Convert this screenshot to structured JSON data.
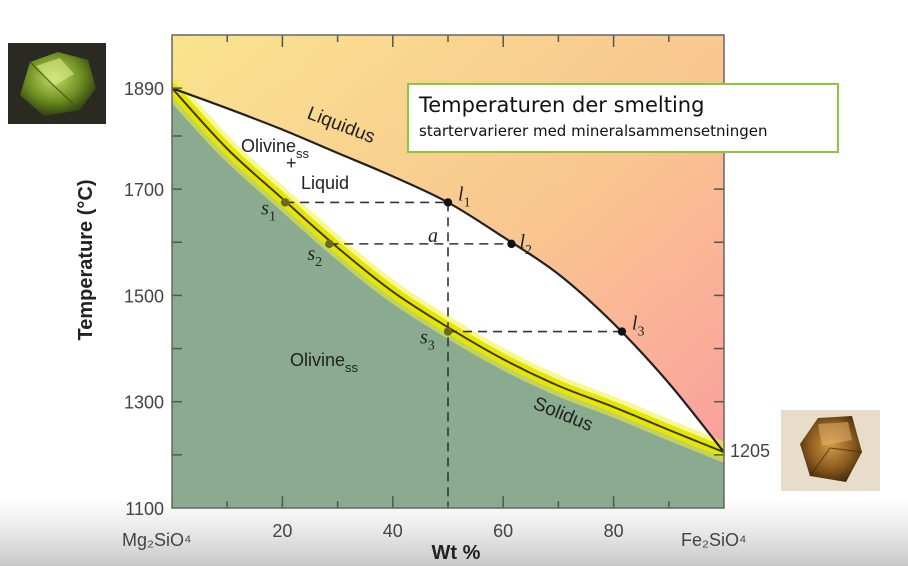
{
  "callout": {
    "title": "Temperaturen der smelting",
    "subtitle": "startervarierer med mineralsammensetningen"
  },
  "chart_data": {
    "type": "line",
    "title": "",
    "xlabel": "Wt %",
    "ylabel": "Temperature (°C)",
    "xlim": [
      0,
      100
    ],
    "ylim": [
      1100,
      1990
    ],
    "x_ticks": [
      "20",
      "40",
      "60",
      "80"
    ],
    "y_ticks": [
      "1890",
      "1700",
      "1500",
      "1300",
      "1100"
    ],
    "x_end_labels": {
      "left": "Mg₂SiO₄",
      "right": "Fe₂SiO₄"
    },
    "endpoint_labels": {
      "left": "",
      "right": "1205"
    },
    "region_labels": {
      "liquid_region": "",
      "two_phase": [
        "Olivine",
        "ss",
        "+",
        "Liquid"
      ],
      "solid": [
        "Olivine",
        "ss"
      ]
    },
    "series": [
      {
        "name": "Liquidus",
        "x": [
          0,
          10,
          20,
          30,
          40,
          50,
          60,
          70,
          80,
          90,
          100
        ],
        "y": [
          1890,
          1852,
          1812,
          1768,
          1724,
          1675,
          1610,
          1540,
          1447,
          1335,
          1205
        ]
      },
      {
        "name": "Solidus",
        "x": [
          0,
          10,
          20,
          30,
          40,
          50,
          60,
          70,
          80,
          90,
          100
        ],
        "y": [
          1890,
          1776,
          1682,
          1590,
          1507,
          1440,
          1380,
          1330,
          1290,
          1247,
          1205
        ]
      }
    ],
    "points": [
      {
        "label": "l",
        "sub": "1",
        "x": 50,
        "y": 1675
      },
      {
        "label": "l",
        "sub": "2",
        "x": 61.5,
        "y": 1597
      },
      {
        "label": "l",
        "sub": "3",
        "x": 81.5,
        "y": 1432
      },
      {
        "label": "s",
        "sub": "1",
        "x": 20.5,
        "y": 1675
      },
      {
        "label": "s",
        "sub": "2",
        "x": 28.5,
        "y": 1597
      },
      {
        "label": "s",
        "sub": "3",
        "x": 50,
        "y": 1432
      },
      {
        "label": "a",
        "sub": "",
        "x": 50,
        "y": 1597
      }
    ],
    "colors": {
      "liquid_top": "#f9e48e",
      "liquid_mid": "#f9c490",
      "liquid_right": "#fb9aa0",
      "solid": "#8aab8f",
      "two_phase": "#ffffff",
      "highlight": "#e6e600"
    }
  }
}
